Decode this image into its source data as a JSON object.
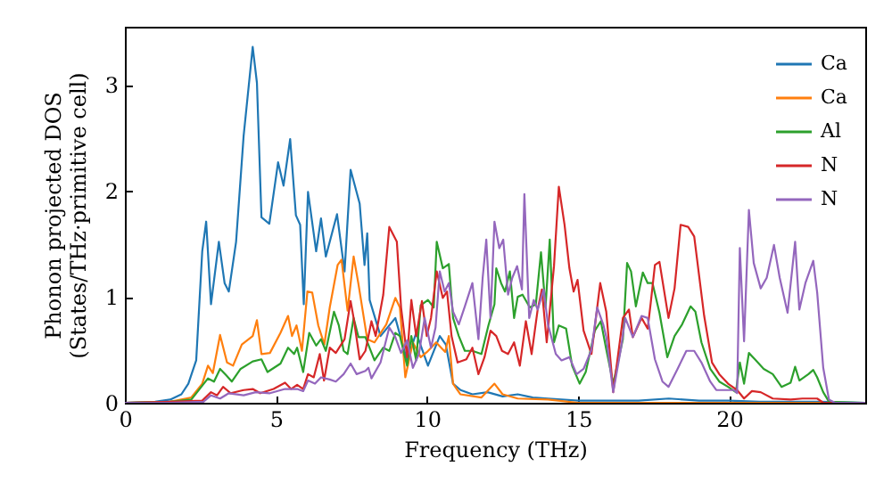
{
  "chart_data": {
    "type": "line",
    "xlabel": "Frequency (THz)",
    "ylabel": "Phonon projected DOS\n(States/THz·primitive cell)",
    "xlim": [
      0,
      24.5
    ],
    "ylim": [
      0,
      3.55
    ],
    "xticks": [
      0,
      5,
      10,
      15,
      20
    ],
    "yticks": [
      0,
      1,
      2,
      3
    ],
    "legend": "top right",
    "series": [
      {
        "name": "Ca",
        "color": "#1f77b4",
        "x": [
          0,
          1,
          1.5,
          1.87,
          2.1,
          2.36,
          2.56,
          2.69,
          2.85,
          3.11,
          3.3,
          3.44,
          3.68,
          3.93,
          4.23,
          4.37,
          4.52,
          4.78,
          5.07,
          5.25,
          5.47,
          5.66,
          5.8,
          5.92,
          6.06,
          6.33,
          6.49,
          6.65,
          7.02,
          7.27,
          7.47,
          7.77,
          7.93,
          8.02,
          8.1,
          8.46,
          8.95,
          9.34,
          9.64,
          10.03,
          10.42,
          10.62,
          10.86,
          11.11,
          11.5,
          12,
          12.5,
          13,
          13.5,
          14,
          15,
          16,
          17,
          18,
          19,
          20,
          21,
          22,
          23,
          24.5
        ],
        "values": [
          0,
          0.01,
          0.03,
          0.08,
          0.18,
          0.4,
          1.43,
          1.71,
          0.93,
          1.52,
          1.13,
          1.05,
          1.52,
          2.52,
          3.36,
          3.02,
          1.75,
          1.69,
          2.27,
          2.05,
          2.49,
          1.77,
          1.68,
          0.93,
          1.99,
          1.43,
          1.74,
          1.38,
          1.78,
          1.24,
          2.2,
          1.88,
          1.3,
          1.6,
          0.97,
          0.63,
          0.8,
          0.4,
          0.66,
          0.35,
          0.63,
          0.55,
          0.18,
          0.12,
          0.08,
          0.1,
          0.06,
          0.08,
          0.05,
          0.04,
          0.02,
          0.02,
          0.02,
          0.04,
          0.02,
          0.02,
          0.01,
          0.01,
          0.01,
          0
        ]
      },
      {
        "name": "Ca",
        "color": "#ff7f0e",
        "x": [
          0,
          1.5,
          2.2,
          2.56,
          2.75,
          2.91,
          3.15,
          3.38,
          3.58,
          3.87,
          4.23,
          4.37,
          4.52,
          4.8,
          5.15,
          5.4,
          5.53,
          5.68,
          5.86,
          6.04,
          6.2,
          6.4,
          6.6,
          6.78,
          7.04,
          7.17,
          7.37,
          7.57,
          7.73,
          8.02,
          8.26,
          8.65,
          8.95,
          9.1,
          9.28,
          9.53,
          9.79,
          10.0,
          10.3,
          10.6,
          10.72,
          10.86,
          11.1,
          11.8,
          12.23,
          12.5,
          13,
          14,
          15,
          24.5
        ],
        "values": [
          0,
          0.01,
          0.05,
          0.18,
          0.35,
          0.28,
          0.64,
          0.38,
          0.35,
          0.55,
          0.63,
          0.78,
          0.46,
          0.47,
          0.66,
          0.82,
          0.63,
          0.73,
          0.49,
          1.05,
          1.04,
          0.73,
          0.55,
          0.9,
          1.3,
          1.35,
          0.87,
          1.38,
          1.12,
          0.6,
          0.57,
          0.74,
          0.99,
          0.9,
          0.24,
          0.57,
          0.43,
          0.48,
          0.57,
          0.48,
          0.63,
          0.18,
          0.08,
          0.05,
          0.18,
          0.08,
          0.04,
          0.03,
          0,
          0
        ]
      },
      {
        "name": "Al",
        "color": "#2ca02c",
        "x": [
          0,
          1.5,
          2.2,
          2.75,
          2.95,
          3.15,
          3.35,
          3.54,
          3.83,
          4.23,
          4.52,
          4.72,
          5.15,
          5.4,
          5.6,
          5.7,
          5.9,
          6.1,
          6.33,
          6.49,
          6.65,
          6.92,
          7.08,
          7.24,
          7.37,
          7.57,
          7.73,
          7.96,
          8.26,
          8.55,
          8.75,
          8.95,
          9.1,
          9.34,
          9.48,
          9.64,
          9.79,
          10.03,
          10.22,
          10.32,
          10.52,
          10.72,
          10.86,
          11.05,
          11.25,
          11.5,
          11.8,
          12.03,
          12.23,
          12.29,
          12.45,
          12.58,
          12.74,
          12.88,
          13.0,
          13.16,
          13.4,
          13.6,
          13.77,
          13.92,
          14.06,
          14.2,
          14.36,
          14.6,
          14.8,
          15.05,
          15.25,
          15.55,
          15.75,
          15.94,
          16.16,
          16.48,
          16.62,
          16.75,
          16.91,
          17.14,
          17.3,
          17.46,
          17.69,
          17.95,
          18.19,
          18.44,
          18.72,
          18.88,
          19.08,
          19.37,
          19.67,
          19.96,
          20.22,
          20.35,
          20.49,
          20.65,
          20.85,
          21.14,
          21.44,
          21.73,
          22.03,
          22.18,
          22.32,
          22.62,
          22.78,
          22.91,
          23.11,
          23.3,
          24.5
        ],
        "values": [
          0,
          0.01,
          0.03,
          0.23,
          0.2,
          0.32,
          0.26,
          0.2,
          0.32,
          0.39,
          0.41,
          0.29,
          0.37,
          0.52,
          0.46,
          0.52,
          0.29,
          0.66,
          0.54,
          0.6,
          0.49,
          0.86,
          0.73,
          0.49,
          0.46,
          0.8,
          0.62,
          0.62,
          0.4,
          0.52,
          0.49,
          0.66,
          0.63,
          0.35,
          0.63,
          0.4,
          0.92,
          0.97,
          0.9,
          1.52,
          1.27,
          1.31,
          0.8,
          0.63,
          0.49,
          0.49,
          0.46,
          0.73,
          0.93,
          1.27,
          1.13,
          1.05,
          1.24,
          0.8,
          1.0,
          1.02,
          0.9,
          0.93,
          1.42,
          0.9,
          1.54,
          0.57,
          0.73,
          0.7,
          0.35,
          0.18,
          0.29,
          0.68,
          0.77,
          0.49,
          0.18,
          0.6,
          1.32,
          1.24,
          0.91,
          1.23,
          1.13,
          1.13,
          0.85,
          0.43,
          0.63,
          0.74,
          0.91,
          0.86,
          0.57,
          0.32,
          0.2,
          0.15,
          0.1,
          0.38,
          0.18,
          0.47,
          0.41,
          0.32,
          0.27,
          0.15,
          0.19,
          0.34,
          0.21,
          0.27,
          0.31,
          0.24,
          0.1,
          0.01,
          0
        ]
      },
      {
        "name": "N",
        "color": "#d62728",
        "x": [
          0,
          1.5,
          2.56,
          2.85,
          3.05,
          3.25,
          3.5,
          3.93,
          4.23,
          4.48,
          4.92,
          5.3,
          5.5,
          5.7,
          5.9,
          6.06,
          6.25,
          6.45,
          6.59,
          6.78,
          6.98,
          7.27,
          7.47,
          7.57,
          7.77,
          7.96,
          8.16,
          8.3,
          8.55,
          8.75,
          9.0,
          9.14,
          9.34,
          9.48,
          9.64,
          9.83,
          9.99,
          10.13,
          10.32,
          10.52,
          10.66,
          10.81,
          11.01,
          11.3,
          11.5,
          11.7,
          11.9,
          12.1,
          12.29,
          12.48,
          12.68,
          12.88,
          13.07,
          13.27,
          13.46,
          13.66,
          13.8,
          13.96,
          14.2,
          14.36,
          14.55,
          14.71,
          14.85,
          14.98,
          15.18,
          15.44,
          15.73,
          15.93,
          16.16,
          16.48,
          16.68,
          16.81,
          17.1,
          17.3,
          17.4,
          17.54,
          17.69,
          17.99,
          18.19,
          18.39,
          18.64,
          18.84,
          19.17,
          19.43,
          19.67,
          19.96,
          20.26,
          20.49,
          20.75,
          21.04,
          21.44,
          22.03,
          22.42,
          22.91,
          23.11,
          24.5
        ],
        "values": [
          0,
          0.01,
          0.02,
          0.1,
          0.07,
          0.15,
          0.09,
          0.12,
          0.13,
          0.09,
          0.13,
          0.19,
          0.13,
          0.17,
          0.13,
          0.27,
          0.24,
          0.46,
          0.21,
          0.52,
          0.47,
          0.6,
          0.96,
          0.8,
          0.41,
          0.49,
          0.77,
          0.63,
          1.02,
          1.66,
          1.52,
          0.9,
          0.43,
          0.97,
          0.63,
          0.96,
          0.63,
          0.8,
          1.24,
          0.99,
          1.05,
          0.63,
          0.38,
          0.41,
          0.52,
          0.27,
          0.43,
          0.68,
          0.63,
          0.49,
          0.46,
          0.57,
          0.35,
          0.77,
          0.46,
          0.88,
          1.07,
          0.57,
          1.29,
          2.04,
          1.68,
          1.27,
          1.05,
          1.16,
          0.68,
          0.46,
          1.13,
          0.86,
          0.1,
          0.8,
          0.88,
          0.62,
          0.8,
          0.7,
          0.94,
          1.3,
          1.33,
          0.8,
          1.08,
          1.68,
          1.66,
          1.57,
          0.82,
          0.38,
          0.27,
          0.18,
          0.12,
          0.04,
          0.11,
          0.1,
          0.04,
          0.03,
          0.04,
          0.04,
          0,
          0
        ]
      },
      {
        "name": "N",
        "color": "#9467bd",
        "x": [
          0,
          1.5,
          2.6,
          2.85,
          3.15,
          3.44,
          3.93,
          4.33,
          4.8,
          5.3,
          5.7,
          5.9,
          6.06,
          6.29,
          6.49,
          6.78,
          6.98,
          7.24,
          7.47,
          7.67,
          7.96,
          8.06,
          8.16,
          8.46,
          8.75,
          8.95,
          9.14,
          9.34,
          9.53,
          9.73,
          9.92,
          10.13,
          10.28,
          10.42,
          10.58,
          10.72,
          10.86,
          11.05,
          11.25,
          11.5,
          11.7,
          11.84,
          11.96,
          12.1,
          12.23,
          12.39,
          12.52,
          12.68,
          12.82,
          12.98,
          13.14,
          13.22,
          13.38,
          13.53,
          13.66,
          13.86,
          14.0,
          14.26,
          14.45,
          14.71,
          14.95,
          15.18,
          15.44,
          15.63,
          15.83,
          15.93,
          16.16,
          16.42,
          16.56,
          16.81,
          17.1,
          17.3,
          17.54,
          17.79,
          17.99,
          18.29,
          18.58,
          18.84,
          19.08,
          19.37,
          19.57,
          19.86,
          20.16,
          20.26,
          20.35,
          20.49,
          20.65,
          20.81,
          21.04,
          21.24,
          21.48,
          21.67,
          21.93,
          22.18,
          22.32,
          22.52,
          22.78,
          22.91,
          23.11,
          23.3,
          23.5,
          24.5
        ],
        "values": [
          0,
          0,
          0.01,
          0.07,
          0.04,
          0.09,
          0.07,
          0.1,
          0.09,
          0.13,
          0.13,
          0.11,
          0.21,
          0.18,
          0.24,
          0.22,
          0.2,
          0.27,
          0.37,
          0.27,
          0.3,
          0.33,
          0.23,
          0.38,
          0.71,
          0.62,
          0.47,
          0.59,
          0.33,
          0.46,
          0.8,
          0.52,
          0.71,
          1.24,
          1.05,
          1.13,
          0.86,
          0.74,
          0.91,
          1.13,
          0.6,
          1.18,
          1.54,
          0.8,
          1.71,
          1.46,
          1.54,
          1.02,
          1.18,
          1.29,
          1.07,
          1.97,
          0.8,
          0.97,
          0.88,
          1.07,
          0.74,
          0.46,
          0.4,
          0.43,
          0.27,
          0.32,
          0.5,
          0.9,
          0.74,
          0.62,
          0.1,
          0.52,
          0.8,
          0.62,
          0.82,
          0.8,
          0.41,
          0.2,
          0.15,
          0.32,
          0.49,
          0.49,
          0.38,
          0.2,
          0.12,
          0.12,
          0.12,
          0.09,
          1.46,
          0.58,
          1.82,
          1.32,
          1.08,
          1.18,
          1.49,
          1.18,
          0.85,
          1.52,
          0.88,
          1.13,
          1.34,
          1.04,
          0.33,
          0.03,
          0,
          0
        ]
      }
    ]
  }
}
